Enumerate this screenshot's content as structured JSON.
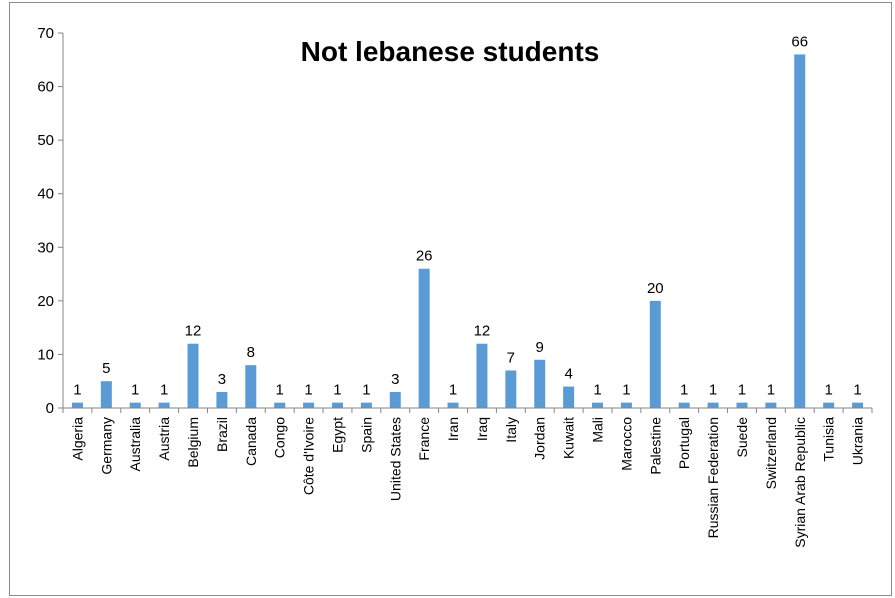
{
  "chart_data": {
    "type": "bar",
    "title": "Not lebanese students",
    "xlabel": "",
    "ylabel": "",
    "ylim": [
      0,
      70
    ],
    "yticks": [
      0,
      10,
      20,
      30,
      40,
      50,
      60,
      70
    ],
    "grid": false,
    "legend": "none",
    "bar_color": "#5b9bd5",
    "categories": [
      "Algeria",
      "Germany",
      "Australia",
      "Austria",
      "Belgium",
      "Brazil",
      "Canada",
      "Congo",
      "Côte d'Ivoire",
      "Egypt",
      "Spain",
      "United States",
      "France",
      "Iran",
      "Iraq",
      "Italy",
      "Jordan",
      "Kuwait",
      "Mali",
      "Marocco",
      "Palestine",
      "Portugal",
      "Russian Federation",
      "Suede",
      "Switzerland",
      "Syrian Arab Republic",
      "Tunisia",
      "Ukrania"
    ],
    "values": [
      1,
      5,
      1,
      1,
      12,
      3,
      8,
      1,
      1,
      1,
      1,
      3,
      26,
      1,
      12,
      7,
      9,
      4,
      1,
      1,
      20,
      1,
      1,
      1,
      1,
      66,
      1,
      1
    ]
  }
}
